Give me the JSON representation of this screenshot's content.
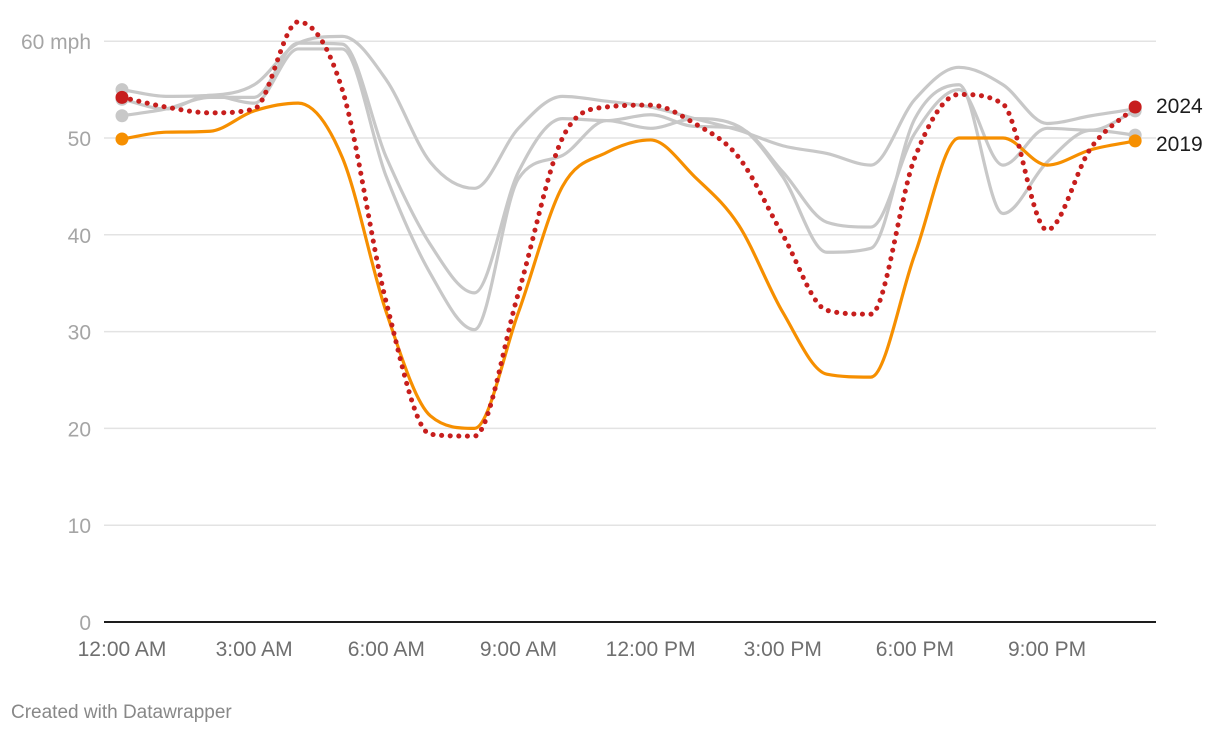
{
  "chart_data": {
    "type": "line",
    "title": "",
    "xlabel": "",
    "ylabel": "mph",
    "ylim": [
      0,
      60
    ],
    "y_ticks": [
      "0",
      "10",
      "20",
      "30",
      "40",
      "50",
      "60 mph"
    ],
    "y_tick_values": [
      0,
      10,
      20,
      30,
      40,
      50,
      60
    ],
    "x_ticks": [
      "12:00 AM",
      "3:00 AM",
      "6:00 AM",
      "9:00 AM",
      "12:00 PM",
      "3:00 PM",
      "6:00 PM",
      "9:00 PM"
    ],
    "x_tick_hours": [
      0,
      3,
      6,
      9,
      12,
      15,
      18,
      21
    ],
    "x": [
      0,
      1,
      2,
      3,
      4,
      5,
      6,
      7,
      8,
      9,
      10,
      11,
      12,
      13,
      14,
      15,
      16,
      17,
      18,
      19,
      20,
      21,
      22,
      23
    ],
    "grid": true,
    "legend": "direct labels at line ends",
    "series": [
      {
        "name": "gray-a",
        "label": "",
        "color": "#c8c8c8",
        "style": "solid",
        "values": [
          55.0,
          54.3,
          54.4,
          55.5,
          59.8,
          60.5,
          56,
          47.5,
          44.8,
          51,
          54.3,
          53.8,
          53.2,
          52,
          50.8,
          49.2,
          48.4,
          47.2,
          54,
          57.3,
          55.5,
          51.5,
          52.3,
          53.0
        ]
      },
      {
        "name": "gray-b",
        "label": "",
        "color": "#c8c8c8",
        "style": "solid",
        "values": [
          54.0,
          53.0,
          54.4,
          53.6,
          59.2,
          59.2,
          46,
          36,
          30.2,
          45.8,
          48.2,
          51.8,
          51.0,
          52,
          51.2,
          46,
          38.2,
          38.6,
          52,
          55.5,
          42.2,
          47.5,
          50.8,
          50.3
        ]
      },
      {
        "name": "gray-c",
        "label": "",
        "color": "#c8c8c8",
        "style": "solid",
        "values": [
          52.3,
          53.0,
          54.2,
          54.2,
          59.8,
          59.7,
          48,
          39,
          34,
          46.5,
          52.0,
          51.8,
          52.4,
          51.2,
          51.0,
          46.5,
          41.3,
          40.8,
          50.5,
          55.0,
          47.2,
          51.0,
          50.8,
          52.8
        ]
      },
      {
        "name": "2019",
        "label": "2019",
        "color": "#f68f00",
        "style": "solid",
        "values": [
          49.9,
          50.6,
          50.7,
          52.8,
          53.6,
          48,
          32,
          21.3,
          20.0,
          32,
          45,
          48.5,
          49.8,
          46,
          41,
          32,
          25.6,
          25.3,
          38,
          50,
          50,
          47.2,
          48.8,
          49.7
        ]
      },
      {
        "name": "2024",
        "label": "2024",
        "color": "#c71e1d",
        "style": "dotted",
        "values": [
          54.2,
          53.2,
          52.6,
          53.0,
          62.0,
          55,
          33,
          19.4,
          19.2,
          34,
          50,
          53.2,
          53.4,
          51.5,
          48,
          40,
          32.2,
          31.8,
          48,
          54.5,
          53.5,
          40.5,
          49,
          53.2
        ]
      }
    ]
  },
  "footer": {
    "credit": "Created with Datawrapper"
  }
}
